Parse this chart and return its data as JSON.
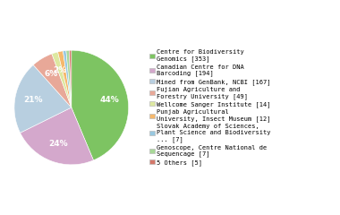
{
  "labels": [
    "Centre for Biodiversity\nGenomics [353]",
    "Canadian Centre for DNA\nBarcoding [194]",
    "Mined from GenBank, NCBI [167]",
    "Fujian Agriculture and\nForestry University [49]",
    "Wellcome Sanger Institute [14]",
    "Punjab Agricultural\nUniversity, Insect Museum [12]",
    "Slovak Academy of Sciences,\nPlant Science and Biodiversity\n... [7]",
    "Genoscope, Centre National de\nSequencage [7]",
    "5 Others [5]"
  ],
  "values": [
    353,
    194,
    167,
    49,
    14,
    12,
    7,
    7,
    5
  ],
  "colors": [
    "#7dc462",
    "#d4a8cc",
    "#b8cfe0",
    "#e8a898",
    "#dde8a0",
    "#f5b86c",
    "#98c8e0",
    "#a8d898",
    "#d4786a"
  ],
  "startangle": 90,
  "background_color": "#ffffff",
  "pct_threshold": 1.5
}
